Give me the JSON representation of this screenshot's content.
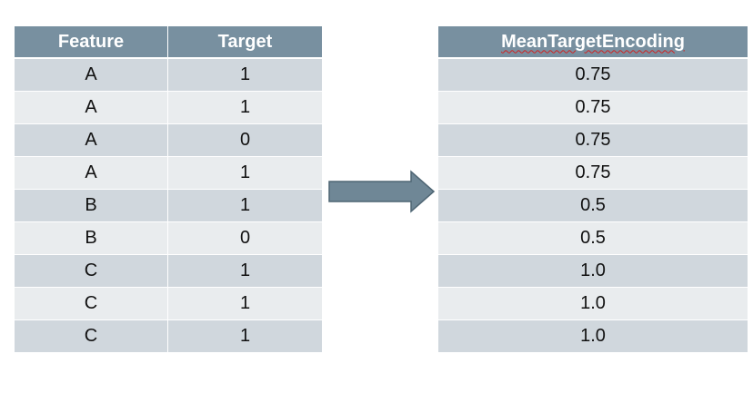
{
  "source_table": {
    "headers": [
      "Feature",
      "Target"
    ],
    "rows": [
      [
        "A",
        "1"
      ],
      [
        "A",
        "1"
      ],
      [
        "A",
        "0"
      ],
      [
        "A",
        "1"
      ],
      [
        "B",
        "1"
      ],
      [
        "B",
        "0"
      ],
      [
        "C",
        "1"
      ],
      [
        "C",
        "1"
      ],
      [
        "C",
        "1"
      ]
    ]
  },
  "result_table": {
    "header": "MeanTargetEncoding",
    "rows": [
      "0.75",
      "0.75",
      "0.75",
      "0.75",
      "0.5",
      "0.5",
      "1.0",
      "1.0",
      "1.0"
    ]
  },
  "colors": {
    "header_bg": "#7890a0",
    "row_dark": "#d0d7dd",
    "row_light": "#e9ecee",
    "arrow_fill": "#6f8796",
    "arrow_stroke": "#4f6674"
  },
  "icons": {
    "transform_arrow": "right-arrow-icon"
  }
}
